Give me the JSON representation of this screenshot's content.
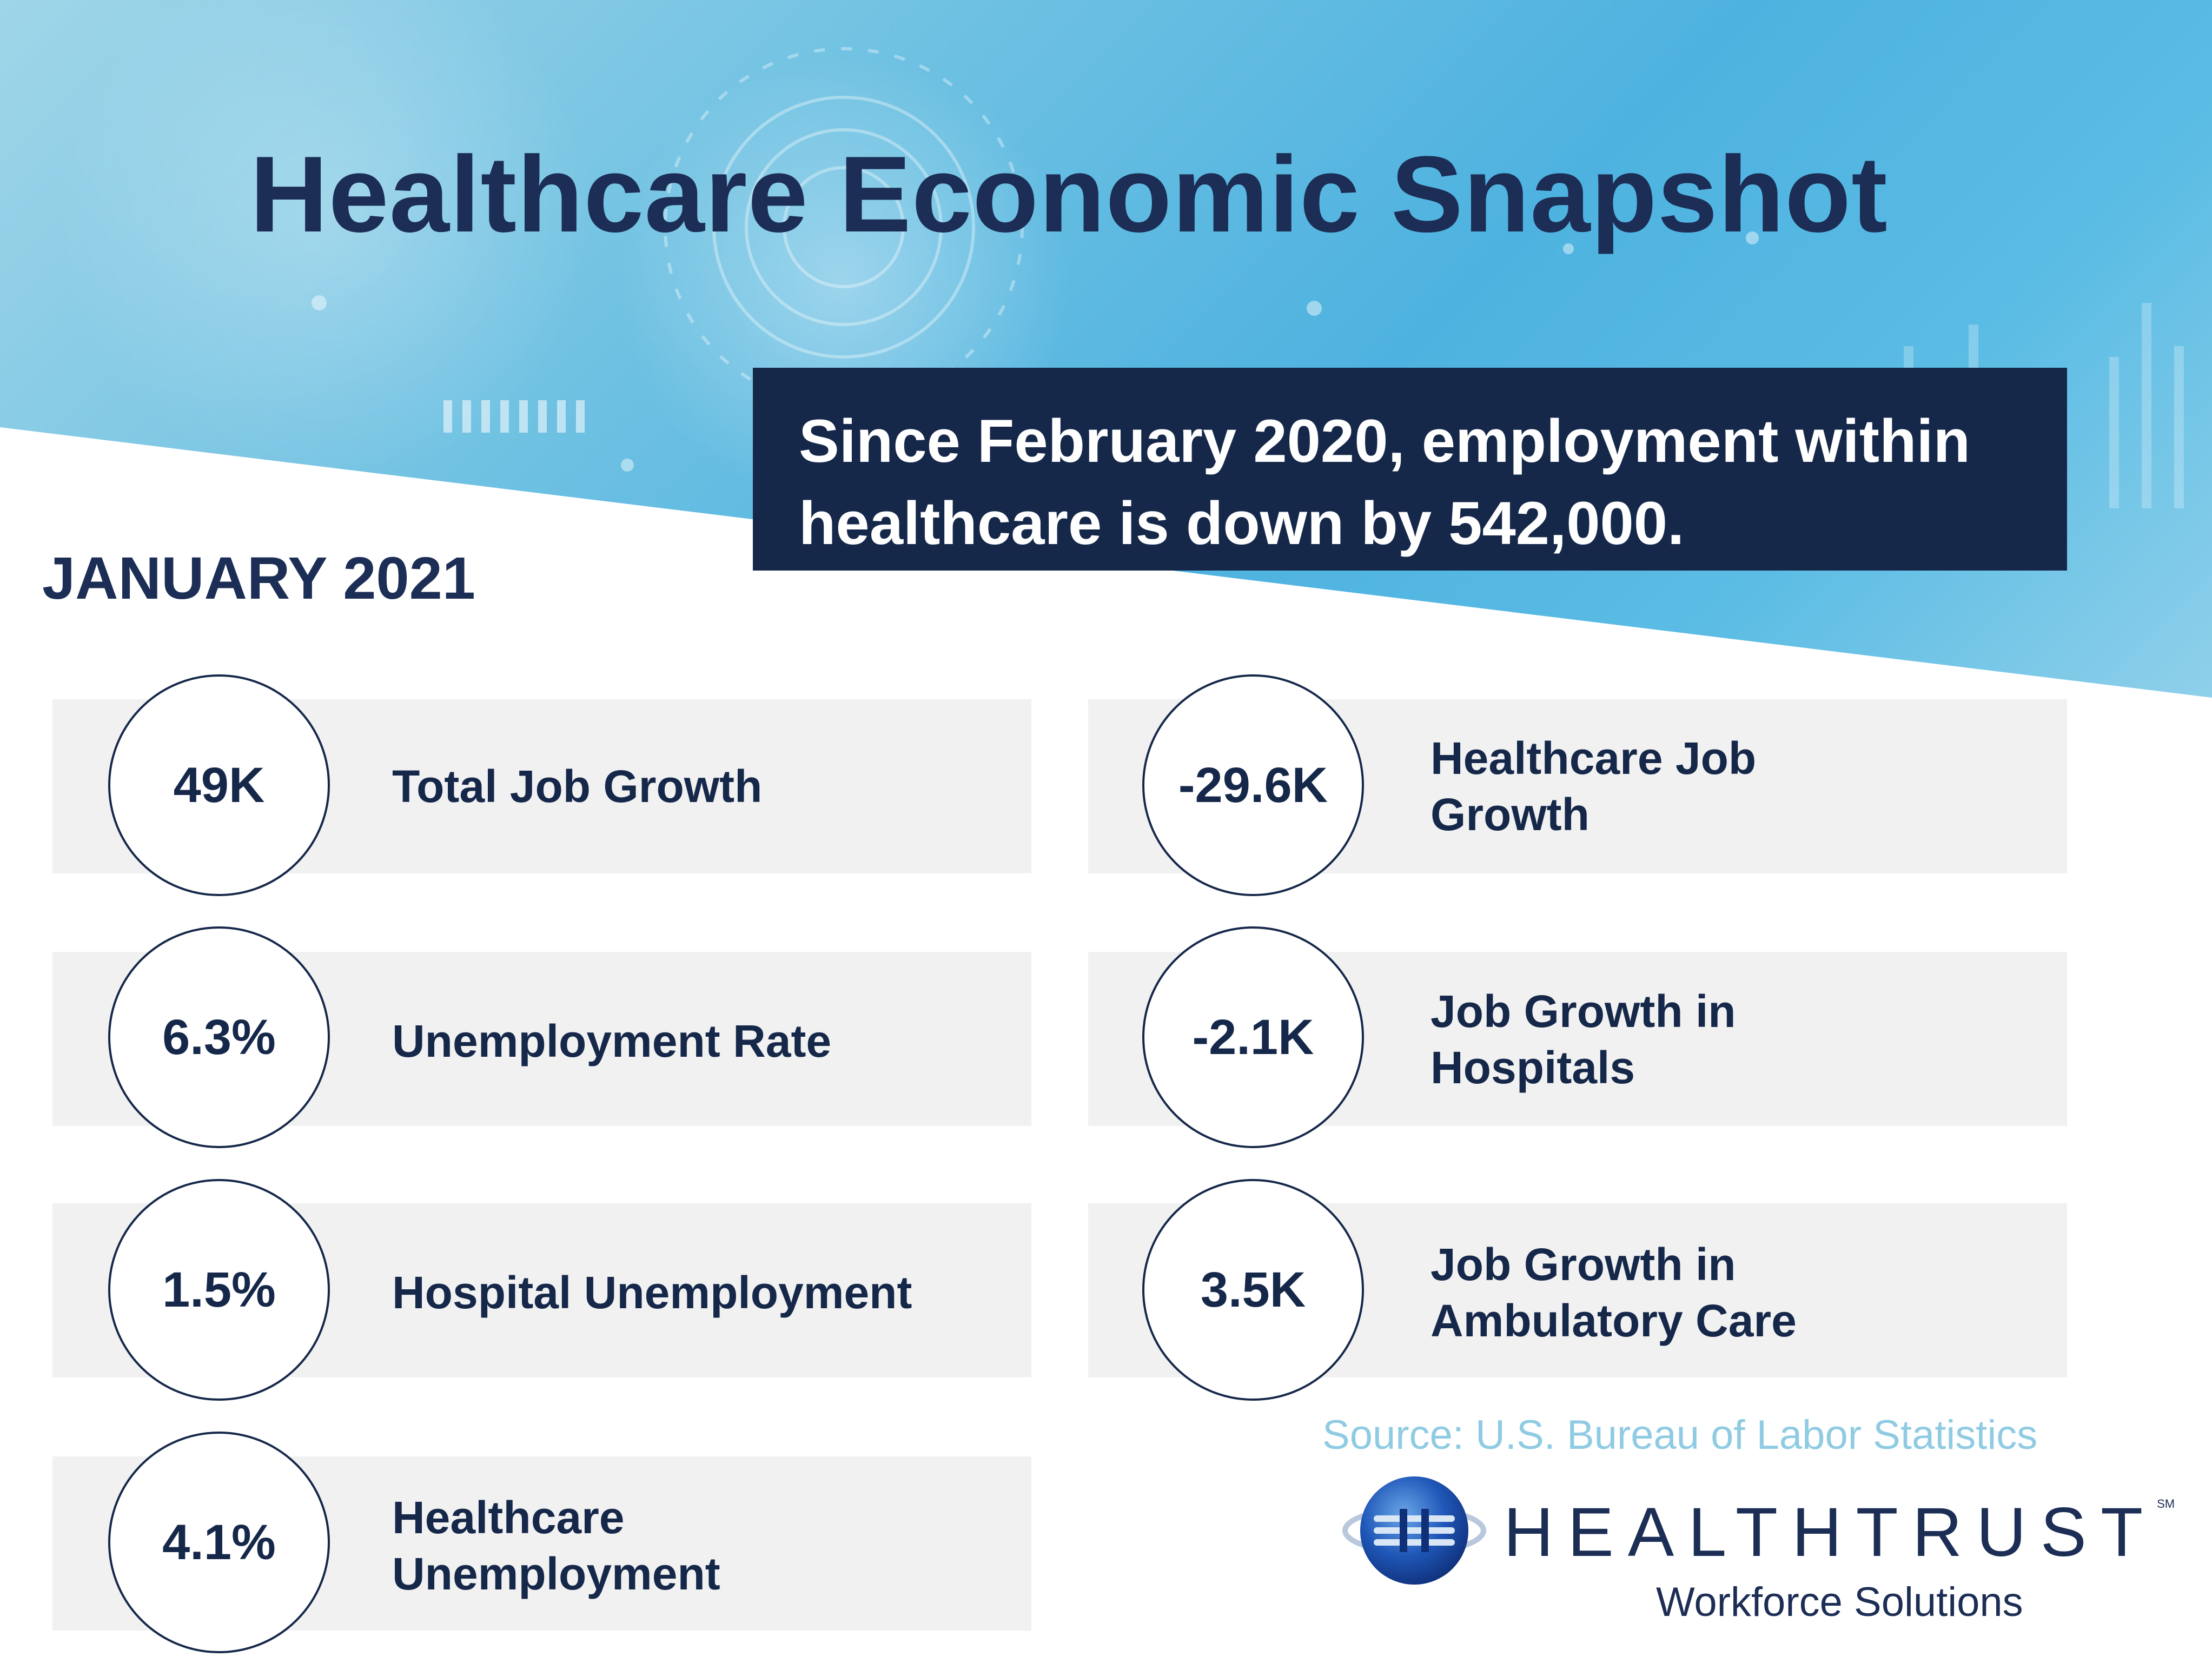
{
  "title": "Healthcare Economic Snapshot",
  "callout": "Since February 2020, employment within healthcare is down by 542,000.",
  "period": "JANUARY 2021",
  "stats": [
    {
      "value": "49K",
      "label": "Total Job Growth"
    },
    {
      "value": "6.3%",
      "label": "Unemployment Rate"
    },
    {
      "value": "1.5%",
      "label": "Hospital Unemployment"
    },
    {
      "value": "4.1%",
      "label": "Healthcare Unemployment"
    },
    {
      "value": "-29.6K",
      "label": "Healthcare Job Growth"
    },
    {
      "value": "-2.1K",
      "label": "Job Growth in Hospitals"
    },
    {
      "value": "3.5K",
      "label": "Job Growth in Ambulatory Care"
    }
  ],
  "source": "Source: U.S. Bureau of Labor Statistics",
  "brand": {
    "name": "HEALTHTRUST",
    "mark": "SM",
    "subtitle": "Workforce Solutions",
    "icon": "globe-logo-icon"
  },
  "colors": {
    "navy": "#16284a",
    "card": "#f1f1f1",
    "source": "#8fcbe2",
    "hero": "#4eb2e0"
  }
}
